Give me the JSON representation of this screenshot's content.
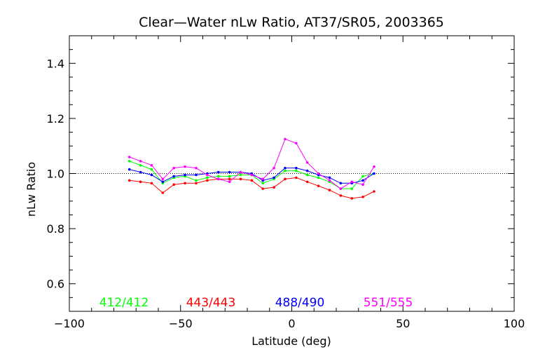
{
  "chart_data": {
    "type": "line",
    "title": "Clear—Water nLw Ratio, AT37/SR05, 2003365",
    "xlabel": "Latitude (deg)",
    "ylabel": "nLw Ratio",
    "xlim": [
      -100,
      100
    ],
    "ylim": [
      0.5,
      1.5
    ],
    "xticks": [
      -100,
      -50,
      0,
      50,
      100
    ],
    "xtick_labels": [
      "−100",
      "−50",
      "0",
      "50",
      "100"
    ],
    "yticks": [
      0.6,
      0.8,
      1.0,
      1.2,
      1.4
    ],
    "ytick_labels": [
      "0.6",
      "0.8",
      "1.0",
      "1.2",
      "1.4"
    ],
    "reference_line": 1.0,
    "grid": false,
    "legend_position": "bottom",
    "x": [
      -73,
      -68,
      -63,
      -58,
      -53,
      -48,
      -43,
      -38,
      -33,
      -28,
      -23,
      -18,
      -13,
      -8,
      -3,
      2,
      7,
      12,
      17,
      22,
      27,
      32,
      37
    ],
    "series": [
      {
        "name": "412/412",
        "color": "#00ff00",
        "values": [
          1.045,
          1.03,
          1.015,
          0.965,
          0.985,
          0.99,
          0.975,
          0.985,
          0.99,
          0.99,
          0.995,
          0.995,
          0.965,
          0.98,
          1.01,
          1.01,
          0.995,
          0.985,
          0.97,
          0.945,
          0.945,
          0.99,
          1.0
        ]
      },
      {
        "name": "443/443",
        "color": "#ff0000",
        "values": [
          0.975,
          0.97,
          0.965,
          0.93,
          0.96,
          0.965,
          0.965,
          0.975,
          0.98,
          0.98,
          0.98,
          0.975,
          0.945,
          0.95,
          0.98,
          0.985,
          0.97,
          0.955,
          0.94,
          0.92,
          0.91,
          0.915,
          0.935
        ]
      },
      {
        "name": "488/490",
        "color": "#0000ff",
        "values": [
          1.015,
          1.005,
          0.995,
          0.97,
          0.99,
          0.995,
          0.995,
          1.0,
          1.005,
          1.005,
          1.005,
          1.0,
          0.975,
          0.985,
          1.02,
          1.02,
          1.01,
          0.995,
          0.985,
          0.965,
          0.965,
          0.975,
          1.0
        ]
      },
      {
        "name": "551/555",
        "color": "#ff00ff",
        "values": [
          1.06,
          1.045,
          1.03,
          0.98,
          1.02,
          1.025,
          1.02,
          0.995,
          0.98,
          0.97,
          1.005,
          0.995,
          0.98,
          1.02,
          1.125,
          1.11,
          1.04,
          1.0,
          0.975,
          0.945,
          0.97,
          0.96,
          1.025
        ]
      }
    ]
  }
}
